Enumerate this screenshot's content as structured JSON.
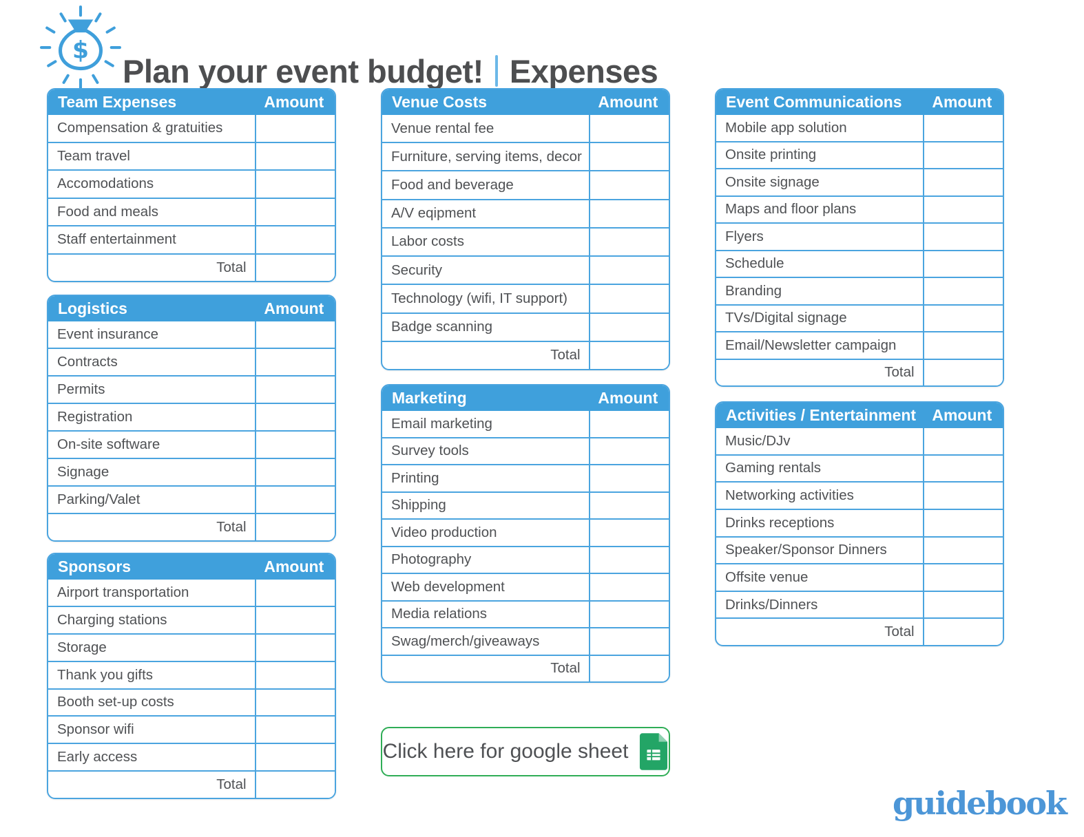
{
  "title": {
    "main": "Plan your event budget!",
    "section": "Expenses"
  },
  "icons": {
    "money_bag": "money-bag-icon",
    "google_sheets": "google-sheets-icon"
  },
  "tables": [
    {
      "id": "team-expenses",
      "title": "Team Expenses",
      "amount_label": "Amount",
      "rows": [
        "Compensation & gratuities",
        "Team travel",
        "Accomodations",
        "Food and meals",
        "Staff entertainment"
      ],
      "total_label": "Total"
    },
    {
      "id": "logistics",
      "title": "Logistics",
      "amount_label": "Amount",
      "rows": [
        "Event insurance",
        "Contracts",
        "Permits",
        "Registration",
        "On-site software",
        "Signage",
        "Parking/Valet"
      ],
      "total_label": "Total"
    },
    {
      "id": "sponsors",
      "title": "Sponsors",
      "amount_label": "Amount",
      "rows": [
        "Airport transportation",
        "Charging stations",
        "Storage",
        "Thank you gifts",
        "Booth set-up costs",
        "Sponsor wifi",
        "Early access"
      ],
      "total_label": "Total"
    },
    {
      "id": "venue-costs",
      "title": "Venue Costs",
      "amount_label": "Amount",
      "rows": [
        "Venue rental fee",
        "Furniture, serving items, decor",
        "Food and beverage",
        "A/V eqipment",
        "Labor costs",
        "Security",
        "Technology (wifi, IT support)",
        "Badge scanning"
      ],
      "total_label": "Total"
    },
    {
      "id": "marketing",
      "title": "Marketing",
      "amount_label": "Amount",
      "rows": [
        "Email marketing",
        "Survey tools",
        "Printing",
        "Shipping",
        "Video production",
        "Photography",
        "Web development",
        "Media relations",
        "Swag/merch/giveaways"
      ],
      "total_label": "Total"
    },
    {
      "id": "event-communications",
      "title": "Event Communications",
      "amount_label": "Amount",
      "rows": [
        "Mobile app solution",
        "Onsite printing",
        "Onsite signage",
        "Maps and floor plans",
        "Flyers",
        "Schedule",
        "Branding",
        "TVs/Digital signage",
        "Email/Newsletter campaign"
      ],
      "total_label": "Total"
    },
    {
      "id": "activities-entertainment",
      "title": "Activities / Entertainment",
      "amount_label": "Amount",
      "rows": [
        "Music/DJv",
        "Gaming rentals",
        "Networking activities",
        "Drinks receptions",
        "Speaker/Sponsor Dinners",
        "Offsite venue",
        "Drinks/Dinners"
      ],
      "total_label": "Total"
    }
  ],
  "button": {
    "label": "Click here for google sheet"
  },
  "logo": {
    "text": "guidebook"
  },
  "colors": {
    "header_blue": "#3fa0dc",
    "table_border_blue": "#4aa4df",
    "title_divider_blue": "#6cb8e8",
    "text_gray": "#4f5154",
    "title_gray": "#4d4e50",
    "button_green": "#2fad56",
    "sheets_green": "#23a566",
    "sheets_fold_green": "#8ed1b1",
    "logo_blue": "#4c96d7"
  }
}
